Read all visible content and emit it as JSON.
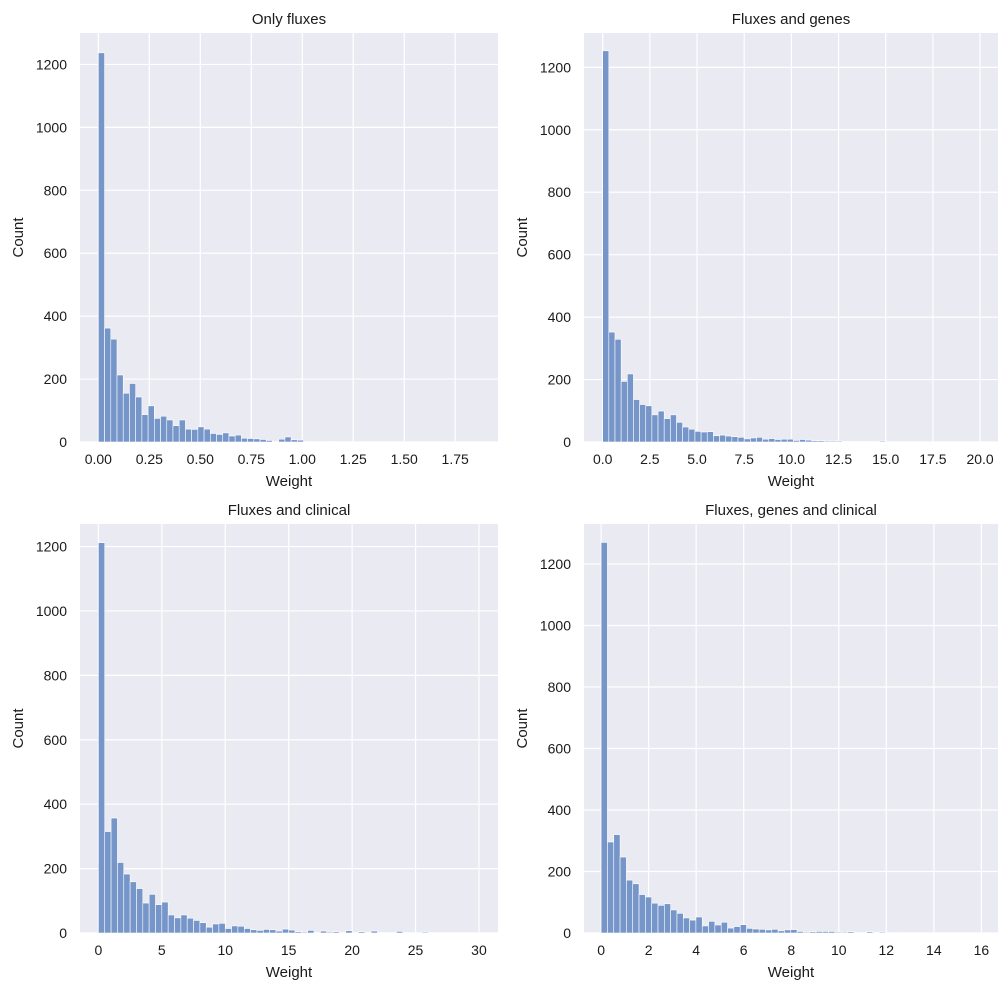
{
  "colors": {
    "bar": "#7695c9",
    "plot_background": "#eaeaf2",
    "grid": "#ffffff"
  },
  "chart_data": [
    {
      "type": "bar",
      "title": "Only fluxes",
      "xlabel": "Weight",
      "ylabel": "Count",
      "grid": true,
      "xlim": [
        -0.09,
        1.96
      ],
      "ylim": [
        0,
        1300
      ],
      "xticks": [
        0.0,
        0.25,
        0.5,
        0.75,
        1.0,
        1.25,
        1.5,
        1.75
      ],
      "xtick_labels": [
        "0.00",
        "0.25",
        "0.50",
        "0.75",
        "1.00",
        "1.25",
        "1.50",
        "1.75"
      ],
      "yticks": [
        0,
        200,
        400,
        600,
        800,
        1000,
        1200
      ],
      "ytick_labels": [
        "0",
        "200",
        "400",
        "600",
        "800",
        "1000",
        "1200"
      ],
      "bin_start": 0.0,
      "bin_width": 0.0305,
      "values": [
        1237,
        362,
        327,
        213,
        155,
        186,
        143,
        87,
        115,
        75,
        82,
        70,
        52,
        70,
        41,
        40,
        48,
        41,
        27,
        24,
        29,
        19,
        22,
        12,
        11,
        10,
        8,
        5,
        2,
        9,
        16,
        7,
        6,
        2,
        1,
        0,
        0,
        2,
        1,
        0,
        0,
        0,
        0,
        0,
        0,
        0,
        0,
        0,
        0,
        0,
        0,
        0,
        0,
        0,
        0,
        0,
        0,
        0,
        0,
        0,
        0,
        1
      ]
    },
    {
      "type": "bar",
      "title": "Fluxes and genes",
      "xlabel": "Weight",
      "ylabel": "Count",
      "grid": true,
      "xlim": [
        -0.99,
        20.95
      ],
      "ylim": [
        0,
        1310
      ],
      "xticks": [
        0.0,
        2.5,
        5.0,
        7.5,
        10.0,
        12.5,
        15.0,
        17.5,
        20.0
      ],
      "xtick_labels": [
        "0.0",
        "2.5",
        "5.0",
        "7.5",
        "10.0",
        "12.5",
        "15.0",
        "17.5",
        "20.0"
      ],
      "yticks": [
        0,
        200,
        400,
        600,
        800,
        1000,
        1200
      ],
      "ytick_labels": [
        "0",
        "200",
        "400",
        "600",
        "800",
        "1000",
        "1200"
      ],
      "bin_start": 0.0,
      "bin_width": 0.326,
      "values": [
        1253,
        352,
        329,
        194,
        218,
        136,
        120,
        116,
        87,
        99,
        75,
        87,
        63,
        48,
        41,
        34,
        32,
        33,
        20,
        22,
        19,
        17,
        15,
        10,
        13,
        15,
        9,
        11,
        8,
        9,
        9,
        5,
        8,
        6,
        4,
        4,
        3,
        3,
        3,
        2,
        2,
        2,
        2,
        2,
        2,
        3,
        1,
        1,
        1,
        1,
        1,
        1,
        0,
        0,
        1,
        1,
        1,
        0,
        0,
        0,
        0,
        1
      ]
    },
    {
      "type": "bar",
      "title": "Fluxes and clinical",
      "xlabel": "Weight",
      "ylabel": "Count",
      "grid": true,
      "xlim": [
        -1.45,
        31.5
      ],
      "ylim": [
        0,
        1270
      ],
      "xticks": [
        0,
        5,
        10,
        15,
        20,
        25,
        30
      ],
      "xtick_labels": [
        "0",
        "5",
        "10",
        "15",
        "20",
        "25",
        "30"
      ],
      "yticks": [
        0,
        200,
        400,
        600,
        800,
        1000,
        1200
      ],
      "ytick_labels": [
        "0",
        "200",
        "400",
        "600",
        "800",
        "1000",
        "1200"
      ],
      "bin_start": 0.0,
      "bin_width": 0.5,
      "values": [
        1212,
        315,
        357,
        219,
        183,
        159,
        138,
        93,
        120,
        88,
        96,
        56,
        47,
        56,
        46,
        39,
        32,
        18,
        28,
        30,
        14,
        22,
        21,
        14,
        10,
        8,
        11,
        10,
        6,
        12,
        9,
        4,
        3,
        8,
        2,
        6,
        3,
        4,
        1,
        7,
        2,
        4,
        1,
        6,
        1,
        1,
        1,
        5,
        1,
        2,
        0,
        3,
        1,
        0,
        0,
        0,
        1,
        0,
        0,
        0,
        1,
        0,
        1
      ]
    },
    {
      "type": "bar",
      "title": "Fluxes, genes and clinical",
      "xlabel": "Weight",
      "ylabel": "Count",
      "grid": true,
      "xlim": [
        -0.72,
        16.7
      ],
      "ylim": [
        0,
        1330
      ],
      "xticks": [
        0,
        2,
        4,
        6,
        8,
        10,
        12,
        14,
        16
      ],
      "xtick_labels": [
        "0",
        "2",
        "4",
        "6",
        "8",
        "10",
        "12",
        "14",
        "16"
      ],
      "yticks": [
        0,
        200,
        400,
        600,
        800,
        1000,
        1200
      ],
      "ytick_labels": [
        "0",
        "200",
        "400",
        "600",
        "800",
        "1000",
        "1200"
      ],
      "bin_start": 0.0,
      "bin_width": 0.266,
      "values": [
        1270,
        296,
        320,
        247,
        172,
        160,
        125,
        117,
        97,
        90,
        95,
        75,
        64,
        49,
        42,
        52,
        23,
        38,
        26,
        35,
        16,
        21,
        27,
        15,
        13,
        12,
        10,
        12,
        7,
        10,
        11,
        5,
        3,
        4,
        5,
        5,
        5,
        3,
        3,
        4,
        1,
        2,
        4,
        2,
        3,
        1,
        2,
        2,
        1,
        1,
        2,
        1,
        1,
        1,
        1,
        1,
        0,
        0,
        1,
        0,
        1,
        1
      ]
    }
  ]
}
